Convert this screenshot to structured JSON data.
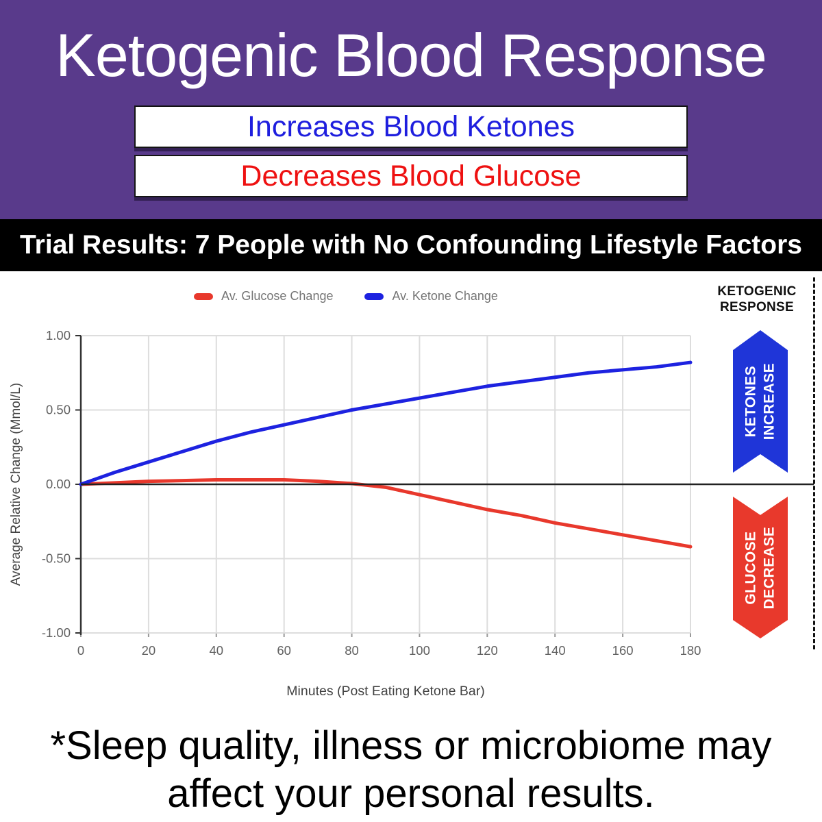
{
  "header": {
    "title": "Ketogenic Blood Response",
    "box1_label": "Increases Blood Ketones",
    "box2_label": "Decreases Blood Glucose"
  },
  "banner": {
    "text": "Trial Results: 7 People with No Confounding Lifestyle Factors"
  },
  "chart_data": {
    "type": "line",
    "xlabel": "Minutes (Post Eating Ketone Bar)",
    "ylabel": "Average Relative Change (Mmol/L)",
    "xlim": [
      0,
      180
    ],
    "ylim": [
      -1.0,
      1.0
    ],
    "grid": true,
    "legend_position": "top",
    "xticks": [
      0,
      20,
      40,
      60,
      80,
      100,
      120,
      140,
      160,
      180
    ],
    "yticks": [
      {
        "value": 1.0,
        "label": "1.00"
      },
      {
        "value": 0.5,
        "label": "0.50"
      },
      {
        "value": 0.0,
        "label": "0.00"
      },
      {
        "value": -0.5,
        "label": "-0.50"
      },
      {
        "value": -1.0,
        "label": "-1.00"
      }
    ],
    "x": [
      0,
      10,
      20,
      30,
      40,
      50,
      60,
      70,
      80,
      90,
      100,
      110,
      120,
      130,
      140,
      150,
      160,
      170,
      180
    ],
    "series": [
      {
        "name": "Av. Glucose Change",
        "color": "#E8382C",
        "values": [
          0.0,
          0.01,
          0.02,
          0.025,
          0.03,
          0.03,
          0.03,
          0.02,
          0.005,
          -0.02,
          -0.07,
          -0.12,
          -0.17,
          -0.21,
          -0.26,
          -0.3,
          -0.34,
          -0.38,
          -0.42
        ]
      },
      {
        "name": "Av. Ketone Change",
        "color": "#1D22E0",
        "values": [
          0.0,
          0.08,
          0.15,
          0.22,
          0.29,
          0.35,
          0.4,
          0.45,
          0.5,
          0.54,
          0.58,
          0.62,
          0.66,
          0.69,
          0.72,
          0.75,
          0.77,
          0.79,
          0.82
        ]
      }
    ]
  },
  "side": {
    "heading_line1": "KETOGENIC",
    "heading_line2": "RESPONSE",
    "up_arrow": {
      "line1": "KETONES",
      "line2": "INCREASE",
      "color": "#1F35D8"
    },
    "down_arrow": {
      "line1": "GLUCOSE",
      "line2": "DECREASE",
      "color": "#E8392C"
    }
  },
  "footer": {
    "line1": "*Sleep quality, illness or microbiome may",
    "line2": "affect your personal results."
  },
  "colors": {
    "header_background": "#593A8B",
    "box1_text": "#1E1EDE",
    "box2_text": "#EE1111",
    "banner_background": "#000000",
    "glucose_red": "#E8382C",
    "ketone_blue": "#1D22E0",
    "gridline": "#DDDDDD",
    "axis_text": "#616161",
    "legend_text": "#757575"
  }
}
